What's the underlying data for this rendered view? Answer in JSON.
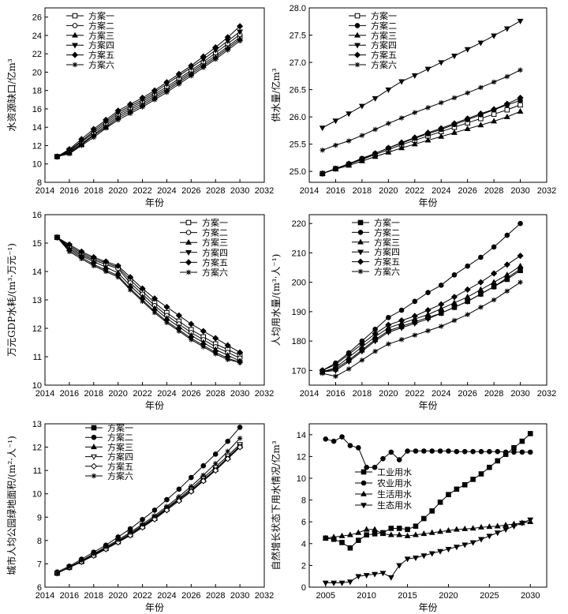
{
  "chart_data": [
    {
      "type": "line",
      "ylabel": "水资源缺口/亿m³",
      "xlabel": "年份",
      "xlim": [
        2014,
        2032
      ],
      "xticks": [
        2014,
        2016,
        2018,
        2020,
        2022,
        2024,
        2026,
        2028,
        2030,
        2032
      ],
      "ylim": [
        8,
        27
      ],
      "yticks": [
        8,
        10,
        12,
        14,
        16,
        18,
        20,
        22,
        24,
        26
      ],
      "legend_position": "top-left",
      "x": [
        2015,
        2016,
        2017,
        2018,
        2019,
        2020,
        2021,
        2022,
        2023,
        2024,
        2025,
        2026,
        2027,
        2028,
        2029,
        2030
      ],
      "series": [
        {
          "name": "方案一",
          "marker": "square-open",
          "values": [
            10.8,
            11.3,
            12.2,
            13.2,
            14.2,
            15.2,
            15.9,
            16.6,
            17.4,
            18.2,
            19.1,
            20.0,
            20.9,
            21.8,
            22.8,
            23.8
          ]
        },
        {
          "name": "方案二",
          "marker": "circle-open",
          "values": [
            10.8,
            11.4,
            12.4,
            13.4,
            14.4,
            15.4,
            16.1,
            16.8,
            17.6,
            18.4,
            19.3,
            20.2,
            21.1,
            22.1,
            23.1,
            24.1
          ]
        },
        {
          "name": "方案三",
          "marker": "triangle",
          "values": [
            10.8,
            11.2,
            12.1,
            13.1,
            14.0,
            15.0,
            15.7,
            16.4,
            17.2,
            18.0,
            18.9,
            19.8,
            20.7,
            21.6,
            22.6,
            23.6
          ]
        },
        {
          "name": "方案四",
          "marker": "triangle-down",
          "values": [
            10.8,
            11.5,
            12.5,
            13.6,
            14.6,
            15.6,
            16.3,
            17.0,
            17.8,
            18.7,
            19.6,
            20.5,
            21.4,
            22.4,
            23.4,
            24.4
          ]
        },
        {
          "name": "方案五",
          "marker": "diamond",
          "values": [
            10.8,
            11.6,
            12.7,
            13.8,
            14.8,
            15.8,
            16.5,
            17.2,
            18.0,
            18.9,
            19.8,
            20.7,
            21.7,
            22.7,
            23.8,
            25.0
          ]
        },
        {
          "name": "方案六",
          "marker": "star",
          "values": [
            10.8,
            11.1,
            12.0,
            12.9,
            13.9,
            14.8,
            15.5,
            16.2,
            17.0,
            17.8,
            18.7,
            19.6,
            20.5,
            21.4,
            22.4,
            23.4
          ]
        }
      ]
    },
    {
      "type": "line",
      "ylabel": "供水量/亿m³",
      "xlabel": "年份",
      "xlim": [
        2014,
        2032
      ],
      "xticks": [
        2014,
        2016,
        2018,
        2020,
        2022,
        2024,
        2026,
        2028,
        2030,
        2032
      ],
      "ylim": [
        24.8,
        28.0
      ],
      "yticks": [
        25.0,
        25.5,
        26.0,
        26.5,
        27.0,
        27.5,
        28.0
      ],
      "legend_position": "top-left",
      "x": [
        2015,
        2016,
        2017,
        2018,
        2019,
        2020,
        2021,
        2022,
        2023,
        2024,
        2025,
        2026,
        2027,
        2028,
        2029,
        2030
      ],
      "series": [
        {
          "name": "方案一",
          "marker": "square-open",
          "values": [
            24.96,
            25.05,
            25.13,
            25.22,
            25.31,
            25.4,
            25.49,
            25.57,
            25.65,
            25.73,
            25.81,
            25.89,
            25.97,
            26.05,
            26.13,
            26.22
          ]
        },
        {
          "name": "方案二",
          "marker": "circle",
          "values": [
            24.96,
            25.05,
            25.14,
            25.24,
            25.33,
            25.43,
            25.52,
            25.61,
            25.69,
            25.77,
            25.86,
            25.95,
            26.04,
            26.13,
            26.22,
            26.3
          ]
        },
        {
          "name": "方案三",
          "marker": "triangle",
          "values": [
            24.96,
            25.04,
            25.11,
            25.19,
            25.27,
            25.35,
            25.43,
            25.5,
            25.57,
            25.64,
            25.71,
            25.78,
            25.85,
            25.92,
            26.0,
            26.1
          ]
        },
        {
          "name": "方案四",
          "marker": "triangle-down",
          "values": [
            25.8,
            25.93,
            26.06,
            26.2,
            26.34,
            26.5,
            26.65,
            26.76,
            26.88,
            27.0,
            27.12,
            27.24,
            27.36,
            27.49,
            27.62,
            27.76
          ]
        },
        {
          "name": "方案五",
          "marker": "diamond",
          "values": [
            24.96,
            25.05,
            25.14,
            25.23,
            25.33,
            25.43,
            25.53,
            25.62,
            25.71,
            25.79,
            25.88,
            25.97,
            26.06,
            26.14,
            26.24,
            26.35
          ]
        },
        {
          "name": "方案六",
          "marker": "star",
          "values": [
            25.39,
            25.48,
            25.56,
            25.66,
            25.77,
            25.88,
            25.98,
            26.08,
            26.17,
            26.26,
            26.35,
            26.44,
            26.54,
            26.64,
            26.74,
            26.86
          ]
        }
      ]
    },
    {
      "type": "line",
      "ylabel": "万元GDP水耗/(m³·万元⁻¹)",
      "xlabel": "年份",
      "xlim": [
        2014,
        2032
      ],
      "xticks": [
        2014,
        2016,
        2018,
        2020,
        2022,
        2024,
        2026,
        2028,
        2030,
        2032
      ],
      "ylim": [
        10,
        16
      ],
      "yticks": [
        10,
        11,
        12,
        13,
        14,
        15,
        16
      ],
      "legend_position": "top-right",
      "x": [
        2015,
        2016,
        2017,
        2018,
        2019,
        2020,
        2021,
        2022,
        2023,
        2024,
        2025,
        2026,
        2027,
        2028,
        2029,
        2030
      ],
      "series": [
        {
          "name": "方案一",
          "marker": "square-open",
          "values": [
            15.2,
            14.9,
            14.65,
            14.45,
            14.3,
            14.15,
            13.7,
            13.3,
            12.9,
            12.55,
            12.25,
            11.95,
            11.7,
            11.45,
            11.25,
            11.05
          ]
        },
        {
          "name": "方案二",
          "marker": "circle-open",
          "values": [
            15.2,
            14.85,
            14.6,
            14.4,
            14.25,
            14.1,
            13.6,
            13.2,
            12.8,
            12.45,
            12.15,
            11.85,
            11.6,
            11.35,
            11.15,
            10.95
          ]
        },
        {
          "name": "方案三",
          "marker": "triangle",
          "values": [
            15.2,
            14.8,
            14.55,
            14.35,
            14.15,
            13.95,
            13.5,
            13.1,
            12.7,
            12.35,
            12.05,
            11.75,
            11.5,
            11.25,
            11.05,
            10.85
          ]
        },
        {
          "name": "方案四",
          "marker": "triangle-down",
          "values": [
            15.2,
            14.75,
            14.5,
            14.25,
            14.05,
            13.85,
            13.4,
            13.0,
            12.6,
            12.25,
            11.95,
            11.65,
            11.4,
            11.15,
            10.95,
            10.8
          ]
        },
        {
          "name": "方案五",
          "marker": "diamond",
          "values": [
            15.2,
            14.95,
            14.7,
            14.5,
            14.35,
            14.2,
            13.8,
            13.4,
            13.05,
            12.75,
            12.45,
            12.15,
            11.9,
            11.65,
            11.4,
            11.15
          ]
        },
        {
          "name": "方案六",
          "marker": "star",
          "values": [
            15.2,
            14.7,
            14.45,
            14.2,
            14.0,
            13.8,
            13.35,
            12.95,
            12.55,
            12.2,
            11.9,
            11.6,
            11.35,
            11.1,
            10.9,
            10.8
          ]
        }
      ]
    },
    {
      "type": "line",
      "ylabel": "人均用水量/(m³·人⁻¹)",
      "xlabel": "年份",
      "xlim": [
        2014,
        2032
      ],
      "xticks": [
        2014,
        2016,
        2018,
        2020,
        2022,
        2024,
        2026,
        2028,
        2030,
        2032
      ],
      "ylim": [
        165,
        223
      ],
      "yticks": [
        170,
        180,
        190,
        200,
        210,
        220
      ],
      "legend_position": "top-left",
      "x": [
        2015,
        2016,
        2017,
        2018,
        2019,
        2020,
        2021,
        2022,
        2023,
        2024,
        2025,
        2026,
        2027,
        2028,
        2029,
        2030
      ],
      "series": [
        {
          "name": "方案一",
          "marker": "square",
          "values": [
            169.5,
            170.5,
            173.5,
            177,
            180.5,
            183.5,
            185,
            186.5,
            188,
            189.5,
            191.5,
            193.5,
            196,
            198.5,
            201,
            204
          ]
        },
        {
          "name": "方案二",
          "marker": "circle",
          "values": [
            170,
            172.5,
            176,
            180,
            184,
            188,
            190.5,
            193.5,
            196.5,
            199,
            202.5,
            205.5,
            208.5,
            212,
            216,
            220
          ]
        },
        {
          "name": "方案三",
          "marker": "triangle",
          "values": [
            169.5,
            171,
            174.5,
            178,
            181.5,
            184.5,
            186,
            187.5,
            189,
            191,
            193,
            195,
            197.5,
            200,
            202.5,
            205.5
          ]
        },
        {
          "name": "方案四",
          "marker": "triangle-down",
          "values": [
            169.5,
            170,
            173,
            176.5,
            180,
            183,
            184.5,
            186,
            187.5,
            189.5,
            191.5,
            193.5,
            196,
            198.5,
            201.5,
            204.5
          ]
        },
        {
          "name": "方案五",
          "marker": "diamond",
          "values": [
            170,
            172,
            175.5,
            179,
            182.5,
            185.5,
            187,
            188.5,
            190.5,
            192.5,
            195,
            197.5,
            200,
            203,
            206,
            209
          ]
        },
        {
          "name": "方案六",
          "marker": "star",
          "values": [
            169,
            168,
            170.5,
            173.5,
            176.5,
            179,
            180.5,
            182,
            183.5,
            185,
            187,
            189,
            191.5,
            194,
            197,
            200
          ]
        }
      ]
    },
    {
      "type": "line",
      "ylabel": "城市人均公园绿地面积/(m²·人⁻¹)",
      "xlabel": "年份",
      "xlim": [
        2014,
        2032
      ],
      "xticks": [
        2014,
        2016,
        2018,
        2020,
        2022,
        2024,
        2026,
        2028,
        2030,
        2032
      ],
      "ylim": [
        6,
        13
      ],
      "yticks": [
        6,
        7,
        8,
        9,
        10,
        11,
        12,
        13
      ],
      "legend_position": "top-left",
      "x": [
        2015,
        2016,
        2017,
        2018,
        2019,
        2020,
        2021,
        2022,
        2023,
        2024,
        2025,
        2026,
        2027,
        2028,
        2029,
        2030
      ],
      "series": [
        {
          "name": "方案一",
          "marker": "square",
          "values": [
            6.6,
            6.85,
            7.1,
            7.38,
            7.66,
            7.95,
            8.25,
            8.6,
            8.95,
            9.35,
            9.75,
            10.15,
            10.6,
            11.05,
            11.55,
            12.05
          ]
        },
        {
          "name": "方案二",
          "marker": "circle",
          "values": [
            6.65,
            6.9,
            7.2,
            7.5,
            7.8,
            8.15,
            8.5,
            8.9,
            9.3,
            9.75,
            10.2,
            10.7,
            11.2,
            11.7,
            12.25,
            12.85
          ]
        },
        {
          "name": "方案三",
          "marker": "triangle",
          "values": [
            6.6,
            6.85,
            7.1,
            7.38,
            7.66,
            7.95,
            8.25,
            8.6,
            8.95,
            9.35,
            9.75,
            10.15,
            10.6,
            11.05,
            11.55,
            12.05
          ]
        },
        {
          "name": "方案四",
          "marker": "triangle-down-open",
          "values": [
            6.6,
            6.85,
            7.12,
            7.4,
            7.68,
            7.98,
            8.3,
            8.64,
            9.0,
            9.4,
            9.8,
            10.22,
            10.68,
            11.14,
            11.63,
            12.12
          ]
        },
        {
          "name": "方案五",
          "marker": "diamond-open",
          "values": [
            6.6,
            6.84,
            7.08,
            7.35,
            7.63,
            7.92,
            8.22,
            8.56,
            8.91,
            9.3,
            9.7,
            10.1,
            10.55,
            11.0,
            11.5,
            12.0
          ]
        },
        {
          "name": "方案六",
          "marker": "star",
          "values": [
            6.6,
            6.86,
            7.14,
            7.43,
            7.72,
            8.03,
            8.35,
            8.7,
            9.06,
            9.46,
            9.88,
            10.32,
            10.8,
            11.3,
            11.82,
            12.38
          ]
        }
      ]
    },
    {
      "type": "line",
      "ylabel": "自然增长状态下用水情况/亿m³",
      "xlabel": "年份",
      "xlim": [
        2003,
        2032
      ],
      "xticks": [
        2005,
        2010,
        2015,
        2020,
        2025,
        2030
      ],
      "ylim": [
        0,
        15
      ],
      "yticks": [
        0,
        2,
        4,
        6,
        8,
        10,
        12,
        14
      ],
      "legend_position": "center-left",
      "x": [
        2005,
        2006,
        2007,
        2008,
        2009,
        2010,
        2011,
        2012,
        2013,
        2014,
        2015,
        2016,
        2017,
        2018,
        2019,
        2020,
        2021,
        2022,
        2023,
        2024,
        2025,
        2026,
        2027,
        2028,
        2029,
        2030
      ],
      "series": [
        {
          "name": "工业用水",
          "marker": "square",
          "values": [
            4.5,
            4.4,
            4.1,
            3.6,
            4.3,
            4.8,
            4.9,
            5.0,
            5.4,
            5.4,
            5.3,
            5.6,
            6.3,
            7.0,
            7.8,
            8.5,
            9.0,
            9.4,
            9.9,
            10.4,
            11.0,
            11.6,
            12.2,
            12.8,
            13.4,
            14.1
          ]
        },
        {
          "name": "农业用水",
          "marker": "circle",
          "values": [
            13.6,
            13.4,
            13.8,
            13.0,
            12.8,
            11.0,
            11.0,
            11.8,
            12.4,
            11.7,
            12.5,
            12.5,
            12.5,
            12.5,
            12.5,
            12.5,
            12.45,
            12.45,
            12.45,
            12.45,
            12.45,
            12.45,
            12.4,
            12.4,
            12.4,
            12.4
          ]
        },
        {
          "name": "生活用水",
          "marker": "triangle",
          "values": [
            4.5,
            4.6,
            4.7,
            4.8,
            5.0,
            5.3,
            5.3,
            4.9,
            4.8,
            4.8,
            4.7,
            4.8,
            4.9,
            5.0,
            5.1,
            5.2,
            5.3,
            5.35,
            5.4,
            5.5,
            5.55,
            5.6,
            5.7,
            5.8,
            5.9,
            6.0
          ]
        },
        {
          "name": "生态用水",
          "marker": "triangle-down",
          "values": [
            0.4,
            0.4,
            0.4,
            0.5,
            1.0,
            1.1,
            1.2,
            1.3,
            0.9,
            2.0,
            2.6,
            2.7,
            2.9,
            3.1,
            3.3,
            3.5,
            3.7,
            3.9,
            4.1,
            4.4,
            4.7,
            5.0,
            5.3,
            5.6,
            5.9,
            6.2
          ]
        }
      ]
    }
  ]
}
